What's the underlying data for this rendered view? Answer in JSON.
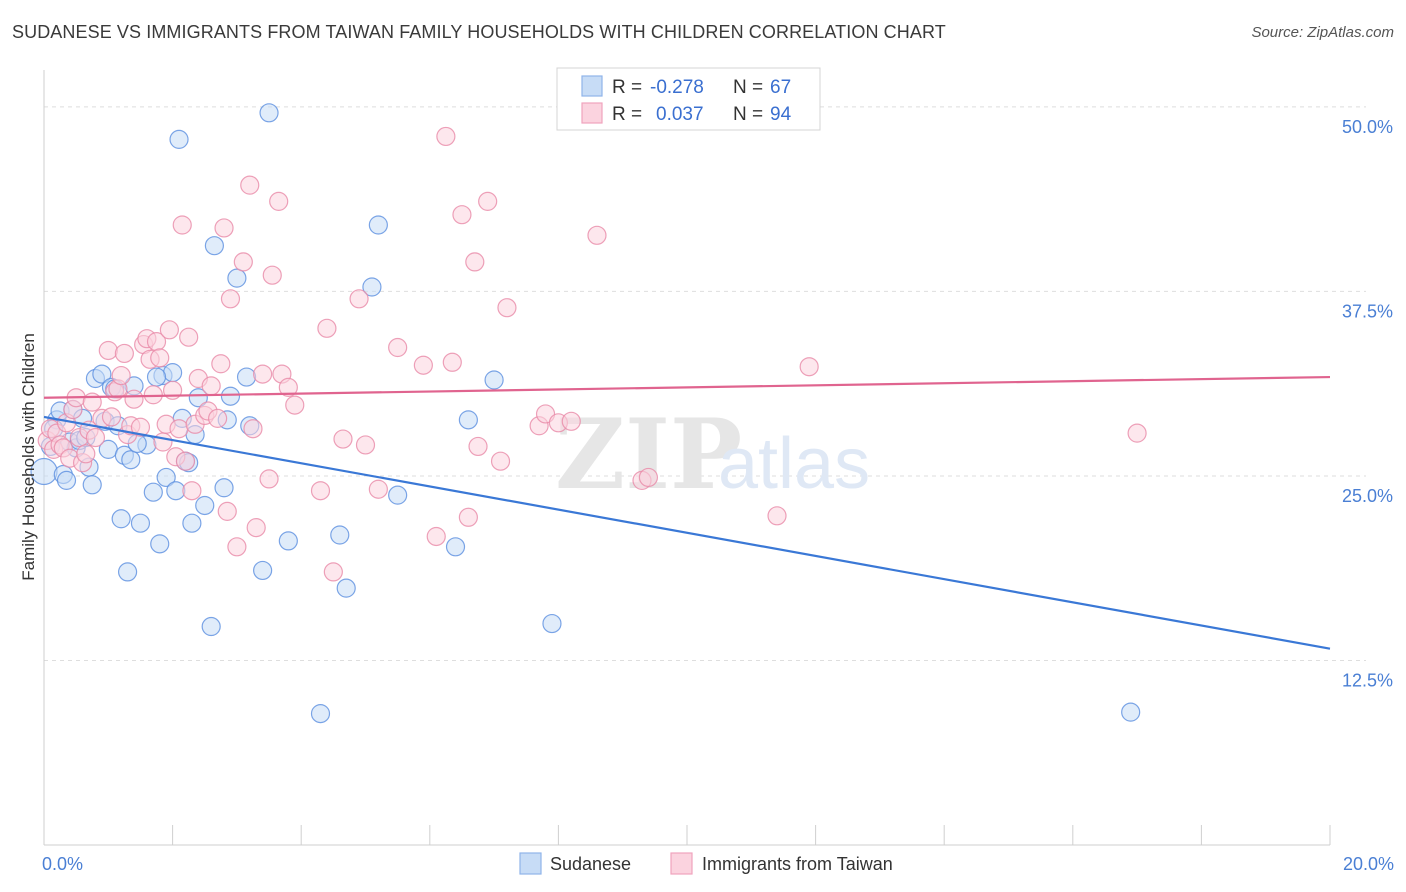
{
  "header": {
    "title": "SUDANESE VS IMMIGRANTS FROM TAIWAN FAMILY HOUSEHOLDS WITH CHILDREN CORRELATION CHART",
    "source": "Source: ZipAtlas.com"
  },
  "watermark": {
    "zip": "ZIP",
    "atlas": "atlas"
  },
  "stats_box": {
    "rows": [
      {
        "r_label": "R =",
        "r_value": "-0.278",
        "n_label": "N =",
        "n_value": "67",
        "color": "#8fb4ea",
        "fill": "#c7dcf6"
      },
      {
        "r_label": "R =",
        "r_value": "0.037",
        "n_label": "N =",
        "n_value": "94",
        "color": "#f0a3bd",
        "fill": "#fbd3df"
      }
    ]
  },
  "chart_data": {
    "type": "scatter",
    "title": "SUDANESE VS IMMIGRANTS FROM TAIWAN FAMILY HOUSEHOLDS WITH CHILDREN CORRELATION CHART",
    "xlabel": "",
    "ylabel": "Family Households with Children",
    "xlim": [
      0,
      20
    ],
    "ylim": [
      0,
      52.5
    ],
    "x_tick_labels": [
      "0.0%",
      "20.0%"
    ],
    "x_tick_label_values": [
      0,
      20
    ],
    "x_minor_ticks": [
      0,
      2,
      4,
      6,
      8,
      10,
      12,
      14,
      16,
      18,
      20
    ],
    "y_ticks": [
      12.5,
      25.0,
      37.5,
      50.0
    ],
    "y_tick_labels": [
      "12.5%",
      "25.0%",
      "37.5%",
      "50.0%"
    ],
    "grid": true,
    "legend_position": "bottom-center",
    "series": [
      {
        "name": "Sudanese",
        "color": "#5b8fe0",
        "fill": "#c7dcf6",
        "trend": {
          "x": [
            0,
            20
          ],
          "y": [
            29.0,
            13.3
          ],
          "color": "#3a78d6"
        },
        "points": [
          [
            0.0,
            25.3
          ],
          [
            0.1,
            27.0
          ],
          [
            0.2,
            28.8
          ],
          [
            0.25,
            29.4
          ],
          [
            0.3,
            25.1
          ],
          [
            0.35,
            24.7
          ],
          [
            0.4,
            27.3
          ],
          [
            0.45,
            29.5
          ],
          [
            0.5,
            26.9
          ],
          [
            0.55,
            27.4
          ],
          [
            0.6,
            28.9
          ],
          [
            0.7,
            25.6
          ],
          [
            0.75,
            24.4
          ],
          [
            0.8,
            31.6
          ],
          [
            0.9,
            31.9
          ],
          [
            1.0,
            26.8
          ],
          [
            1.05,
            31.0
          ],
          [
            1.1,
            30.9
          ],
          [
            1.2,
            22.1
          ],
          [
            1.25,
            26.4
          ],
          [
            1.3,
            18.5
          ],
          [
            1.35,
            26.1
          ],
          [
            1.4,
            31.1
          ],
          [
            1.5,
            21.8
          ],
          [
            1.6,
            27.1
          ],
          [
            1.7,
            23.9
          ],
          [
            1.8,
            20.4
          ],
          [
            1.85,
            31.8
          ],
          [
            1.9,
            24.9
          ],
          [
            2.0,
            32.0
          ],
          [
            2.05,
            24.0
          ],
          [
            2.1,
            47.8
          ],
          [
            2.15,
            28.9
          ],
          [
            2.2,
            26.0
          ],
          [
            2.3,
            21.8
          ],
          [
            2.35,
            27.8
          ],
          [
            2.4,
            30.3
          ],
          [
            2.5,
            23.0
          ],
          [
            2.6,
            14.8
          ],
          [
            2.65,
            40.6
          ],
          [
            2.8,
            24.2
          ],
          [
            2.9,
            30.4
          ],
          [
            3.0,
            38.4
          ],
          [
            3.15,
            31.7
          ],
          [
            3.2,
            28.4
          ],
          [
            3.4,
            18.6
          ],
          [
            3.5,
            49.6
          ],
          [
            3.8,
            20.6
          ],
          [
            4.3,
            8.9
          ],
          [
            4.6,
            21.0
          ],
          [
            4.7,
            17.4
          ],
          [
            5.1,
            37.8
          ],
          [
            5.2,
            42.0
          ],
          [
            5.5,
            23.7
          ],
          [
            6.4,
            20.2
          ],
          [
            6.6,
            28.8
          ],
          [
            7.0,
            31.5
          ],
          [
            7.9,
            15.0
          ],
          [
            16.9,
            9.0
          ],
          [
            0.15,
            28.2
          ],
          [
            0.65,
            27.6
          ],
          [
            0.95,
            28.7
          ],
          [
            1.15,
            28.4
          ],
          [
            1.45,
            27.2
          ],
          [
            2.25,
            25.9
          ],
          [
            2.85,
            28.8
          ],
          [
            1.75,
            31.7
          ]
        ]
      },
      {
        "name": "Immigrants from Taiwan",
        "color": "#e989a8",
        "fill": "#fbd3df",
        "trend": {
          "x": [
            0,
            20
          ],
          "y": [
            30.3,
            31.7
          ],
          "color": "#e0648f"
        },
        "points": [
          [
            0.05,
            27.4
          ],
          [
            0.1,
            28.2
          ],
          [
            0.15,
            26.8
          ],
          [
            0.2,
            27.9
          ],
          [
            0.25,
            27.1
          ],
          [
            0.3,
            26.9
          ],
          [
            0.35,
            28.6
          ],
          [
            0.4,
            26.2
          ],
          [
            0.45,
            29.5
          ],
          [
            0.5,
            30.3
          ],
          [
            0.55,
            27.6
          ],
          [
            0.6,
            25.9
          ],
          [
            0.65,
            26.5
          ],
          [
            0.7,
            28.1
          ],
          [
            0.75,
            30.0
          ],
          [
            0.8,
            27.6
          ],
          [
            0.9,
            28.9
          ],
          [
            1.0,
            33.5
          ],
          [
            1.05,
            29.0
          ],
          [
            1.1,
            30.7
          ],
          [
            1.15,
            30.9
          ],
          [
            1.2,
            31.8
          ],
          [
            1.25,
            33.3
          ],
          [
            1.3,
            27.8
          ],
          [
            1.35,
            28.4
          ],
          [
            1.4,
            30.2
          ],
          [
            1.5,
            28.3
          ],
          [
            1.55,
            33.9
          ],
          [
            1.6,
            34.3
          ],
          [
            1.65,
            32.9
          ],
          [
            1.7,
            30.5
          ],
          [
            1.75,
            34.1
          ],
          [
            1.8,
            33.0
          ],
          [
            1.85,
            27.3
          ],
          [
            1.9,
            28.5
          ],
          [
            1.95,
            34.9
          ],
          [
            2.0,
            30.8
          ],
          [
            2.05,
            26.3
          ],
          [
            2.1,
            28.2
          ],
          [
            2.15,
            42.0
          ],
          [
            2.2,
            26.0
          ],
          [
            2.25,
            34.4
          ],
          [
            2.3,
            24.0
          ],
          [
            2.35,
            28.5
          ],
          [
            2.4,
            31.6
          ],
          [
            2.5,
            29.1
          ],
          [
            2.55,
            29.4
          ],
          [
            2.6,
            31.1
          ],
          [
            2.7,
            28.9
          ],
          [
            2.75,
            32.6
          ],
          [
            2.8,
            41.8
          ],
          [
            2.85,
            22.6
          ],
          [
            2.9,
            37.0
          ],
          [
            3.0,
            20.2
          ],
          [
            3.1,
            39.5
          ],
          [
            3.2,
            44.7
          ],
          [
            3.25,
            28.2
          ],
          [
            3.3,
            21.5
          ],
          [
            3.4,
            31.9
          ],
          [
            3.5,
            24.8
          ],
          [
            3.55,
            38.6
          ],
          [
            3.65,
            43.6
          ],
          [
            3.7,
            31.9
          ],
          [
            3.8,
            31.0
          ],
          [
            3.9,
            29.8
          ],
          [
            4.3,
            24.0
          ],
          [
            4.4,
            35.0
          ],
          [
            4.5,
            18.5
          ],
          [
            4.65,
            27.5
          ],
          [
            4.9,
            37.0
          ],
          [
            5.0,
            27.1
          ],
          [
            5.2,
            24.1
          ],
          [
            5.5,
            33.7
          ],
          [
            5.9,
            32.5
          ],
          [
            6.1,
            20.9
          ],
          [
            6.25,
            48.0
          ],
          [
            6.35,
            32.7
          ],
          [
            6.5,
            42.7
          ],
          [
            6.6,
            22.2
          ],
          [
            6.7,
            39.5
          ],
          [
            6.75,
            27.0
          ],
          [
            6.9,
            43.6
          ],
          [
            7.1,
            26.0
          ],
          [
            7.2,
            36.4
          ],
          [
            7.7,
            28.4
          ],
          [
            7.8,
            29.2
          ],
          [
            8.0,
            28.6
          ],
          [
            8.2,
            28.7
          ],
          [
            8.6,
            41.3
          ],
          [
            9.3,
            24.7
          ],
          [
            9.4,
            24.9
          ],
          [
            11.4,
            22.3
          ],
          [
            11.9,
            32.4
          ],
          [
            17.0,
            27.9
          ]
        ]
      }
    ]
  }
}
